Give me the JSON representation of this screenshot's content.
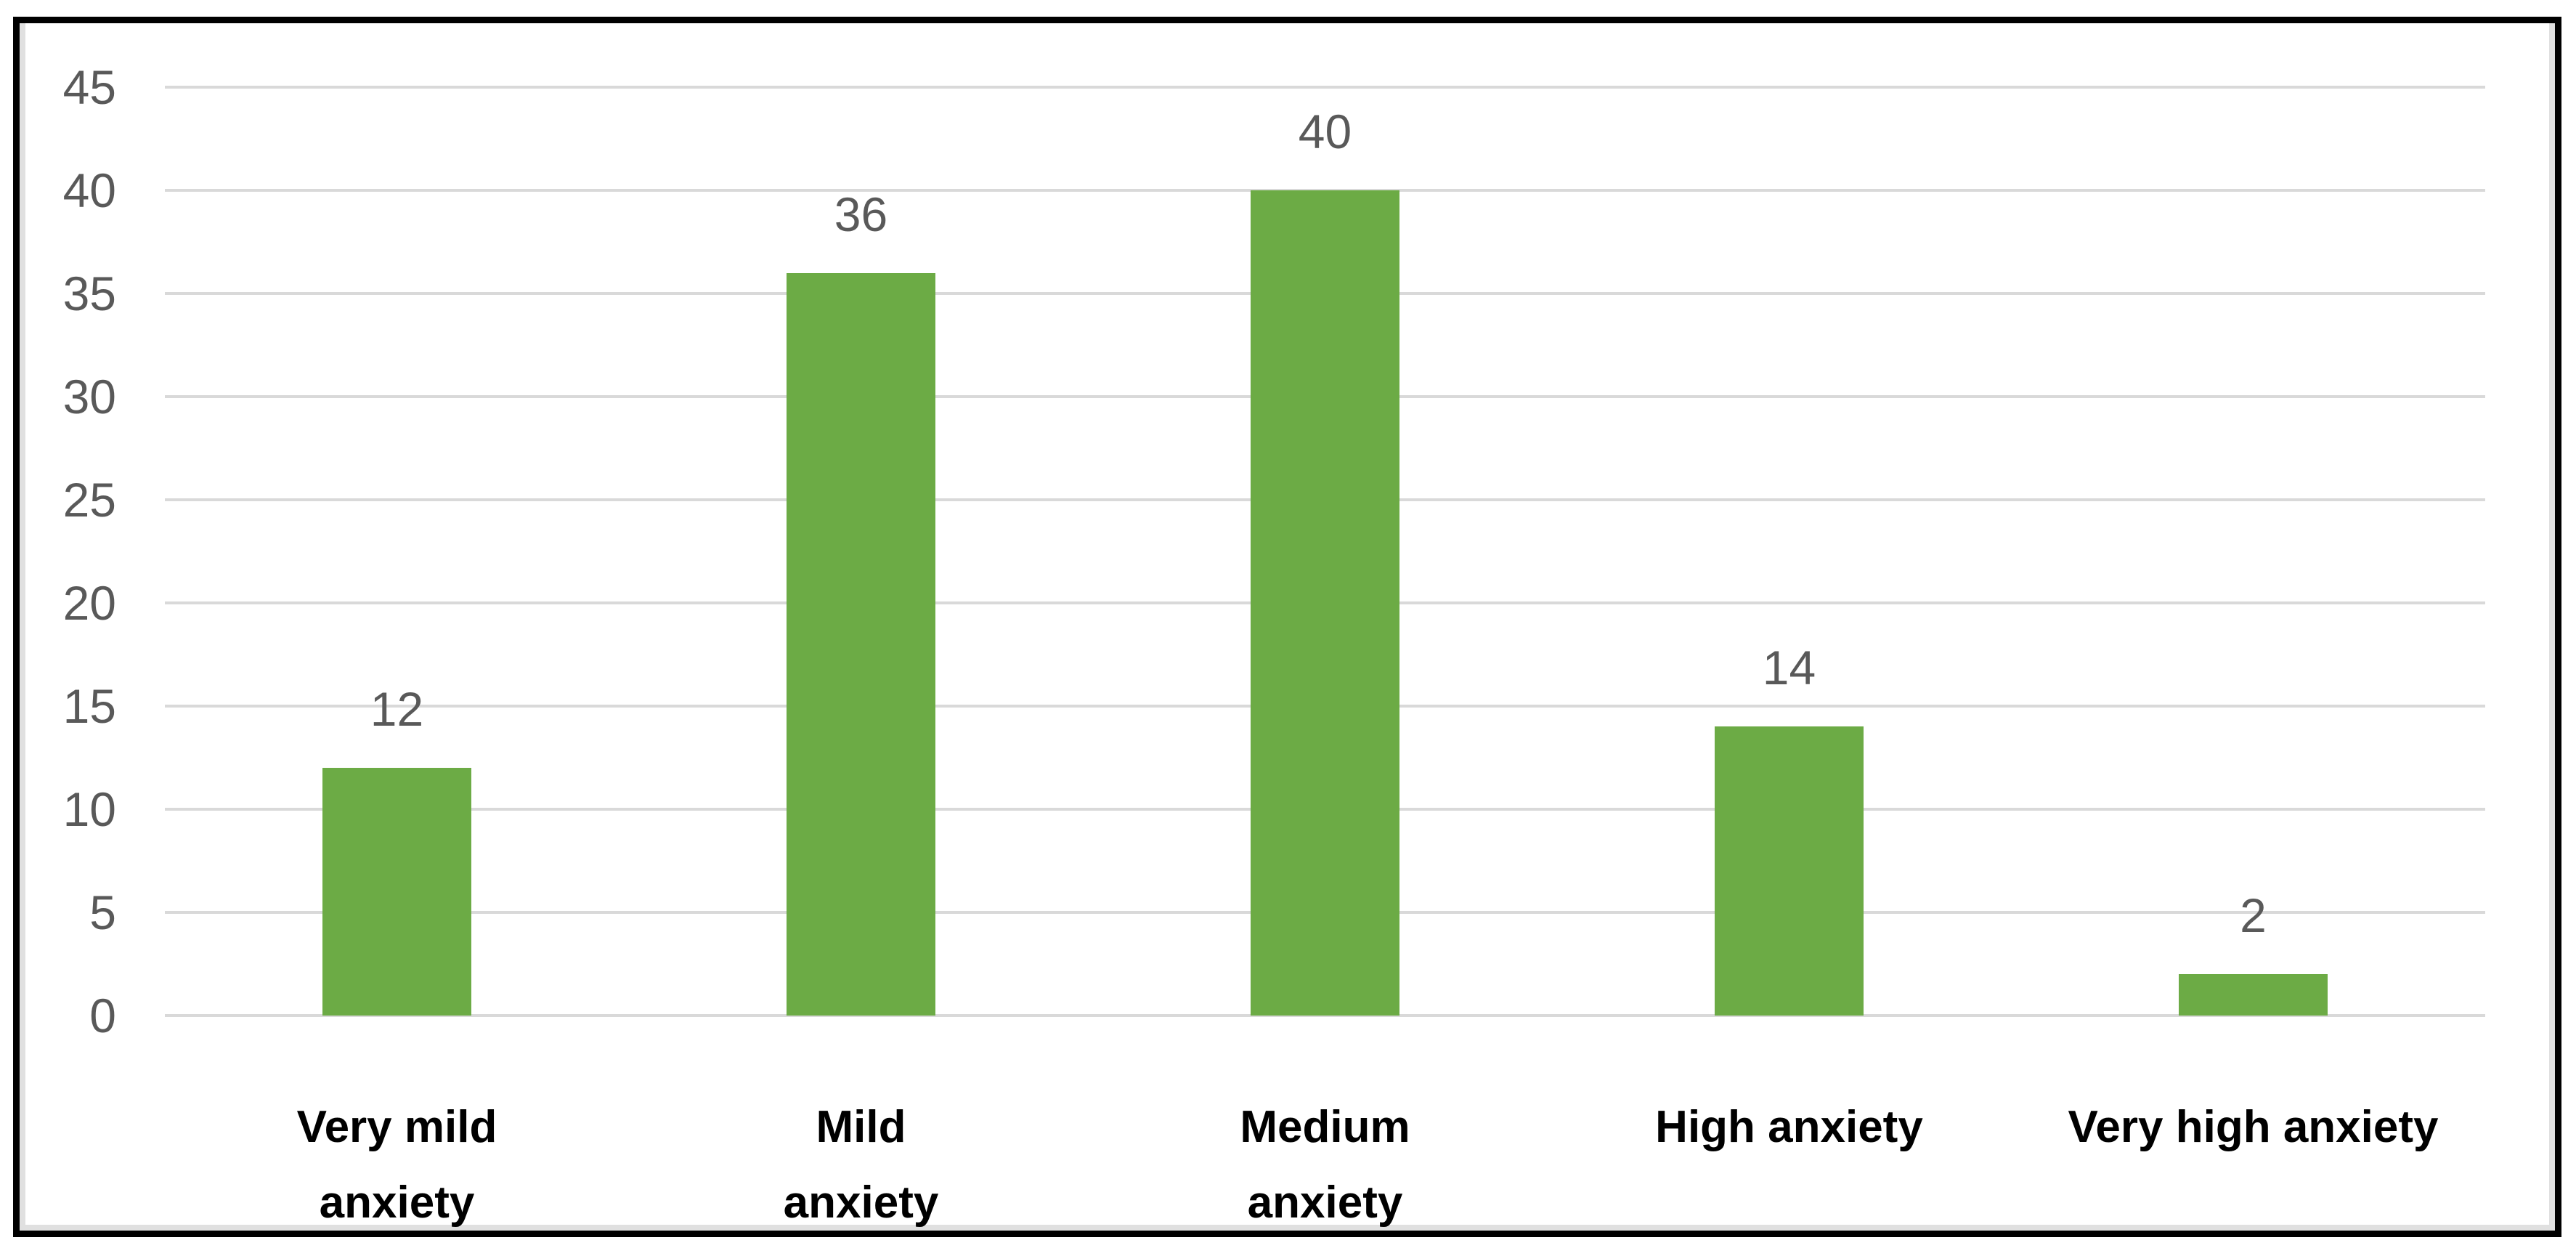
{
  "chart_data": {
    "type": "bar",
    "title": "",
    "xlabel": "",
    "ylabel": "",
    "categories": [
      "Very mild anxiety",
      "Mild anxiety",
      "Medium anxiety",
      "High anxiety",
      "Very high anxiety"
    ],
    "category_lines": [
      [
        "Very mild",
        "anxiety"
      ],
      [
        "Mild",
        "anxiety"
      ],
      [
        "Medium",
        "anxiety"
      ],
      [
        "High anxiety"
      ],
      [
        "Very high anxiety"
      ]
    ],
    "values": [
      12,
      36,
      40,
      14,
      2
    ],
    "data_labels": [
      "12",
      "36",
      "40",
      "14",
      "2"
    ],
    "ylim": [
      0,
      45
    ],
    "y_ticks": [
      45,
      40,
      35,
      30,
      25,
      20,
      15,
      10,
      5,
      0
    ],
    "grid": "horizontal",
    "legend": "none",
    "bar_color": "#6CAB45"
  },
  "colors": {
    "background": "#FFFFFF",
    "frame_border": "#000000",
    "frame_inner_accent": "#E0E0E0",
    "gridline": "#D9D9D9",
    "axis_text": "#595959",
    "data_label_text": "#595959",
    "category_text": "#000000"
  }
}
